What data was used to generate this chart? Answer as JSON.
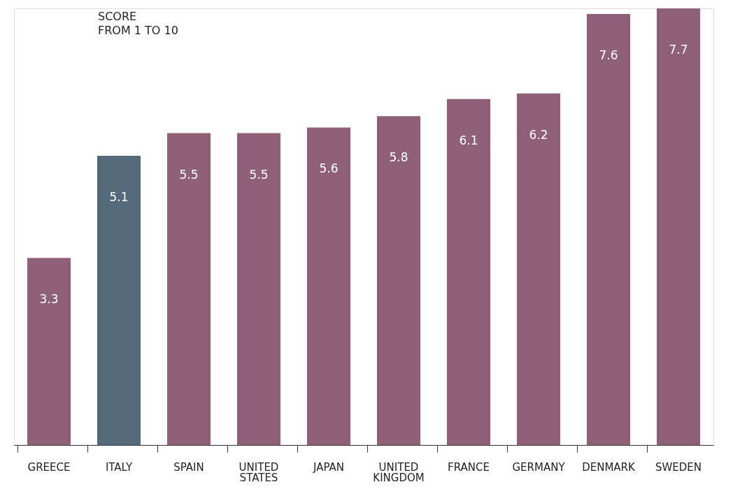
{
  "chart_data": {
    "type": "bar",
    "title": "SCORE",
    "subtitle": "FROM 1 TO 10",
    "categories": [
      "GREECE",
      "ITALY",
      "SPAIN",
      "UNITED STATES",
      "JAPAN",
      "UNITED KINGDOM",
      "FRANCE",
      "GERMANY",
      "DENMARK",
      "SWEDEN"
    ],
    "values": [
      3.3,
      5.1,
      5.5,
      5.5,
      5.6,
      5.8,
      6.1,
      6.2,
      7.6,
      7.7
    ],
    "colors": [
      "#8f6178",
      "#546a7b",
      "#8f6178",
      "#8f6178",
      "#8f6178",
      "#8f6178",
      "#8f6178",
      "#8f6178",
      "#8f6178",
      "#8f6178"
    ],
    "data_labels": true
  }
}
